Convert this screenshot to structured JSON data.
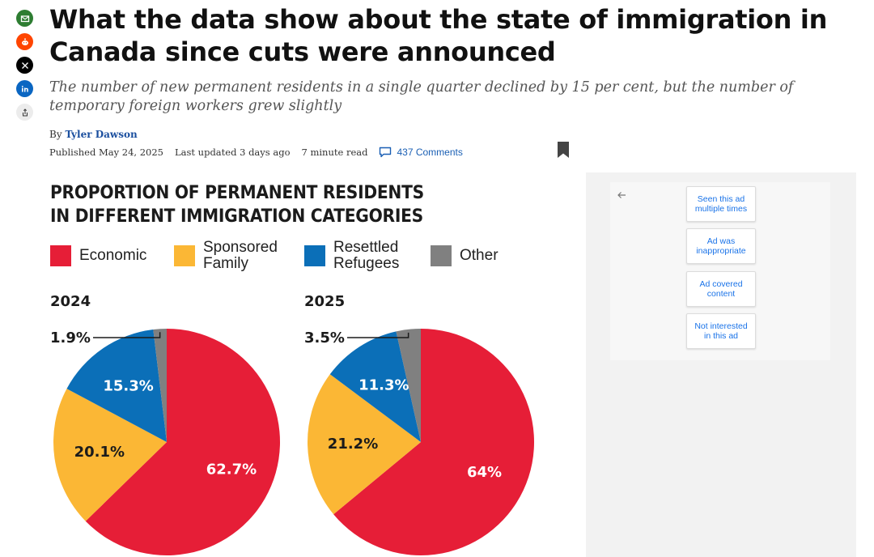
{
  "share": {
    "items": [
      {
        "name": "email",
        "icon": "mail-icon",
        "color": "#2e7d32"
      },
      {
        "name": "reddit",
        "icon": "reddit-icon",
        "color": "#ff4500"
      },
      {
        "name": "x",
        "icon": "x-icon",
        "color": "#000000"
      },
      {
        "name": "linkedin",
        "icon": "linkedin-icon",
        "color": "#0a66c2"
      },
      {
        "name": "share",
        "icon": "share-icon",
        "color": "#e6e6e6"
      }
    ]
  },
  "article": {
    "headline": "What the data show about the state of immigration in Canada since cuts were announced",
    "dek": "The number of new permanent residents in a single quarter declined by 15 per cent, but the number of temporary foreign workers grew slightly",
    "byline_prefix": "By",
    "author": "Tyler Dawson",
    "published": "Published May 24, 2025",
    "updated": "Last updated 3 days ago",
    "read_time": "7 minute read",
    "comments": "437 Comments"
  },
  "infographic": {
    "title_line1": "PROPORTION OF PERMANENT RESIDENTS",
    "title_line2": "IN DIFFERENT IMMIGRATION CATEGORIES",
    "legend": [
      {
        "label": "Economic",
        "color": "#e61e37"
      },
      {
        "label": "Sponsored Family",
        "color": "#fbb735"
      },
      {
        "label": "Resettled Refugees",
        "color": "#0b6fb8"
      },
      {
        "label": "Other",
        "color": "#808080"
      }
    ]
  },
  "chart_data": [
    {
      "type": "pie",
      "title": "2024",
      "categories": [
        "Economic",
        "Sponsored Family",
        "Resettled Refugees",
        "Other"
      ],
      "values": [
        62.7,
        20.1,
        15.3,
        1.9
      ],
      "labels": [
        "62.7%",
        "20.1%",
        "15.3%",
        "1.9%"
      ],
      "colors": [
        "#e61e37",
        "#fbb735",
        "#0b6fb8",
        "#808080"
      ]
    },
    {
      "type": "pie",
      "title": "2025",
      "categories": [
        "Economic",
        "Sponsored Family",
        "Resettled Refugees",
        "Other"
      ],
      "values": [
        64,
        21.2,
        11.3,
        3.5
      ],
      "labels": [
        "64%",
        "21.2%",
        "11.3%",
        "3.5%"
      ],
      "colors": [
        "#e61e37",
        "#fbb735",
        "#0b6fb8",
        "#808080"
      ]
    }
  ],
  "ad_feedback": {
    "options": [
      "Seen this ad multiple times",
      "Ad was inappropriate",
      "Ad covered content",
      "Not interested in this ad"
    ]
  }
}
